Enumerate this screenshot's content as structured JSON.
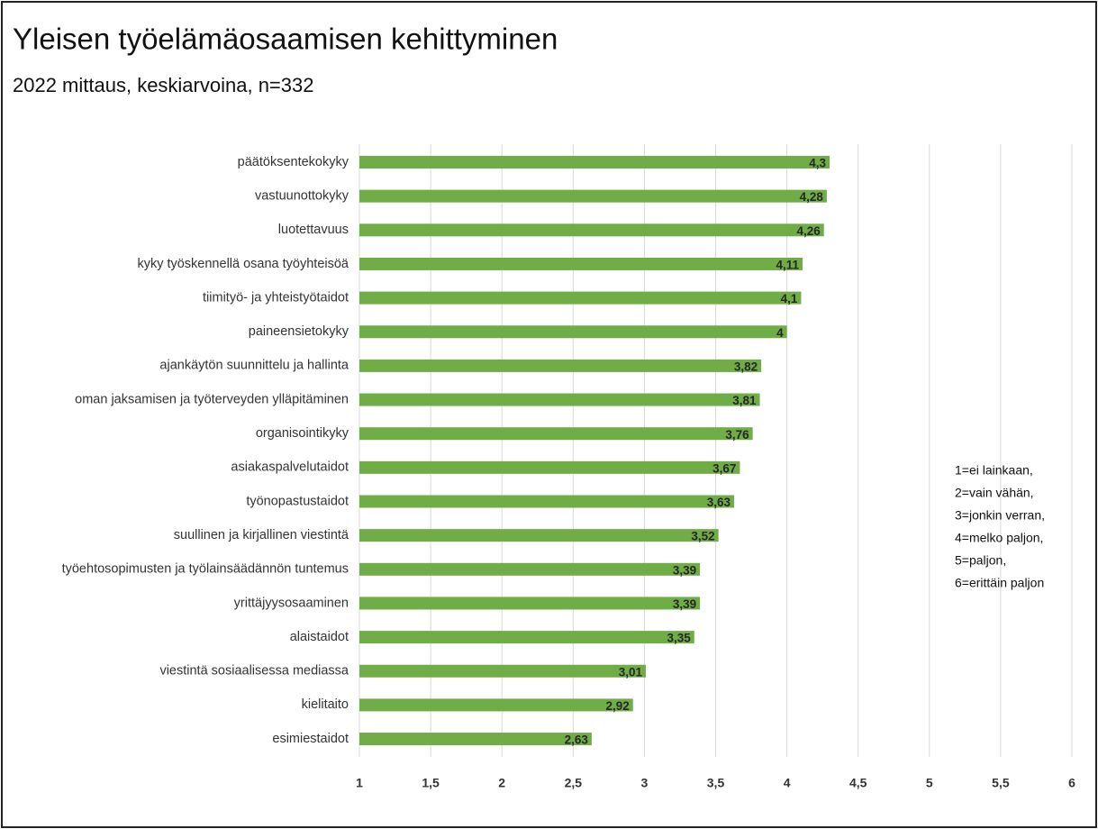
{
  "chart_data": {
    "type": "bar",
    "orientation": "horizontal",
    "title": "Yleisen työelämäosaamisen kehittyminen",
    "subtitle": "2022 mittaus, keskiarvoina, n=332",
    "categories": [
      "päätöksentekokyky",
      "vastuunottokyky",
      "luotettavuus",
      "kyky työskennellä osana työyhteisöä",
      "tiimityö- ja yhteistyötaidot",
      "paineensietokyky",
      "ajankäytön suunnittelu ja hallinta",
      "oman jaksamisen ja työterveyden ylläpitäminen",
      "organisointikyky",
      "asiakaspalvelutaidot",
      "työnopastustaidot",
      "suullinen ja kirjallinen viestintä",
      "työehtosopimusten ja työlainsäädännön tuntemus",
      "yrittäjyysosaaminen",
      "alaistaidot",
      "viestintä sosiaalisessa mediassa",
      "kielitaito",
      "esimiestaidot"
    ],
    "values": [
      4.3,
      4.28,
      4.26,
      4.11,
      4.1,
      4,
      3.82,
      3.81,
      3.76,
      3.67,
      3.63,
      3.52,
      3.39,
      3.39,
      3.35,
      3.01,
      2.92,
      2.63
    ],
    "value_labels": [
      "4,3",
      "4,28",
      "4,26",
      "4,11",
      "4,1",
      "4",
      "3,82",
      "3,81",
      "3,76",
      "3,67",
      "3,63",
      "3,52",
      "3,39",
      "3,39",
      "3,35",
      "3,01",
      "2,92",
      "2,63"
    ],
    "color": "#70ad47",
    "xlim": [
      1,
      6
    ],
    "xticks": [
      1,
      {
        "value": 1.5,
        "label": "1,5"
      },
      2,
      {
        "value": 2.5,
        "label": "2,5"
      },
      3,
      {
        "value": 3.5,
        "label": "3,5"
      },
      4,
      {
        "value": 4.5,
        "label": "4,5"
      },
      5,
      {
        "value": 5.5,
        "label": "5,5"
      },
      6
    ],
    "grid": true,
    "notes": [
      "1=ei lainkaan,",
      "2=vain vähän,",
      "3=jonkin verran,",
      "4=melko paljon,",
      "5=paljon,",
      "6=erittäin paljon"
    ]
  }
}
